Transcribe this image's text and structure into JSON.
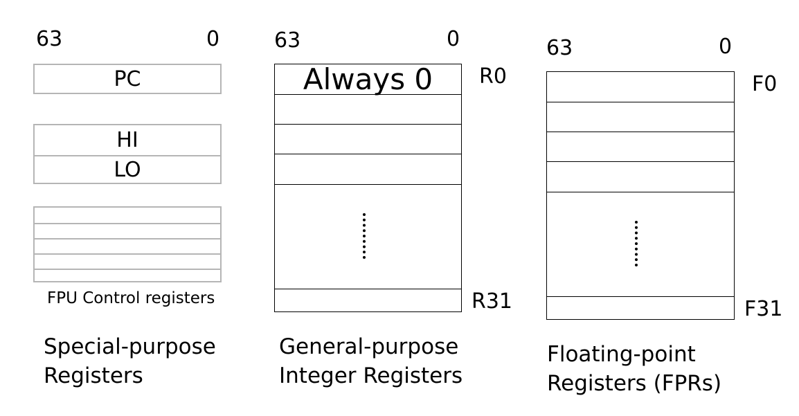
{
  "special": {
    "bit_high": "63",
    "bit_low": "0",
    "pc": "PC",
    "hi": "HI",
    "lo": "LO",
    "fpu_label": "FPU Control registers",
    "caption_line1": "Special-purpose",
    "caption_line2": "Registers"
  },
  "general": {
    "bit_high": "63",
    "bit_low": "0",
    "r0_value": "Always 0",
    "first_reg": "R0",
    "last_reg": "R31",
    "caption_line1": "General-purpose",
    "caption_line2": "Integer Registers"
  },
  "floating": {
    "bit_high": "63",
    "bit_low": "0",
    "first_reg": "F0",
    "last_reg": "F31",
    "caption_line1": "Floating-point",
    "caption_line2": "Registers (FPRs)"
  }
}
